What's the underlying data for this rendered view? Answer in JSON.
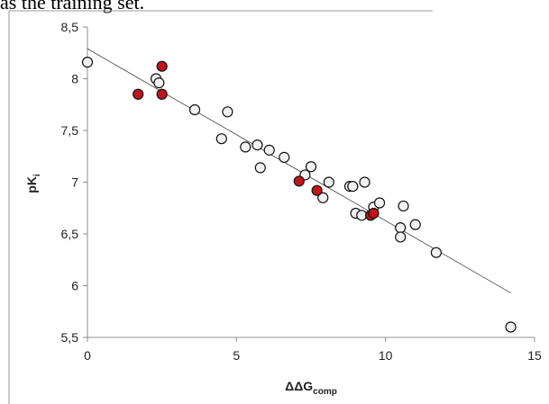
{
  "document": {
    "top_text": "as the training set."
  },
  "chart_data": {
    "type": "scatter",
    "title": "",
    "xlabel": "ΔΔG",
    "xlabel_subscript": "comp",
    "ylabel": "pK",
    "ylabel_subscript": "i",
    "xlim": [
      0,
      15
    ],
    "ylim": [
      5.5,
      8.5
    ],
    "x_ticks": [
      0,
      5,
      10,
      15
    ],
    "x_tick_labels": [
      "0",
      "5",
      "10",
      "15"
    ],
    "y_ticks": [
      5.5,
      6,
      6.5,
      7,
      7.5,
      8,
      8.5
    ],
    "y_tick_labels": [
      "5,5",
      "6",
      "6,5",
      "7",
      "7,5",
      "8",
      "8,5"
    ],
    "grid": false,
    "legend": "none",
    "trendline": {
      "x": [
        0,
        14.2
      ],
      "y": [
        8.29,
        5.93
      ]
    },
    "series": [
      {
        "color": "#f2f2f2",
        "points": [
          [
            0.0,
            8.16
          ],
          [
            2.3,
            8.0
          ],
          [
            2.4,
            7.96
          ],
          [
            3.6,
            7.7
          ],
          [
            4.7,
            7.68
          ],
          [
            4.5,
            7.42
          ],
          [
            5.3,
            7.34
          ],
          [
            5.7,
            7.36
          ],
          [
            5.8,
            7.14
          ],
          [
            6.1,
            7.31
          ],
          [
            6.6,
            7.24
          ],
          [
            7.3,
            7.07
          ],
          [
            7.5,
            7.15
          ],
          [
            7.9,
            6.85
          ],
          [
            8.1,
            7.0
          ],
          [
            8.8,
            6.96
          ],
          [
            8.9,
            6.96
          ],
          [
            9.0,
            6.7
          ],
          [
            9.2,
            6.68
          ],
          [
            9.3,
            7.0
          ],
          [
            9.6,
            6.76
          ],
          [
            9.8,
            6.8
          ],
          [
            10.5,
            6.56
          ],
          [
            10.5,
            6.47
          ],
          [
            10.6,
            6.77
          ],
          [
            11.0,
            6.59
          ],
          [
            11.7,
            6.32
          ],
          [
            14.2,
            5.6
          ]
        ]
      },
      {
        "color": "#c0141c",
        "points": [
          [
            1.7,
            7.85
          ],
          [
            2.5,
            7.85
          ],
          [
            2.5,
            8.12
          ],
          [
            7.1,
            7.01
          ],
          [
            7.7,
            6.92
          ],
          [
            9.5,
            6.68
          ],
          [
            9.6,
            6.7
          ]
        ]
      }
    ]
  }
}
